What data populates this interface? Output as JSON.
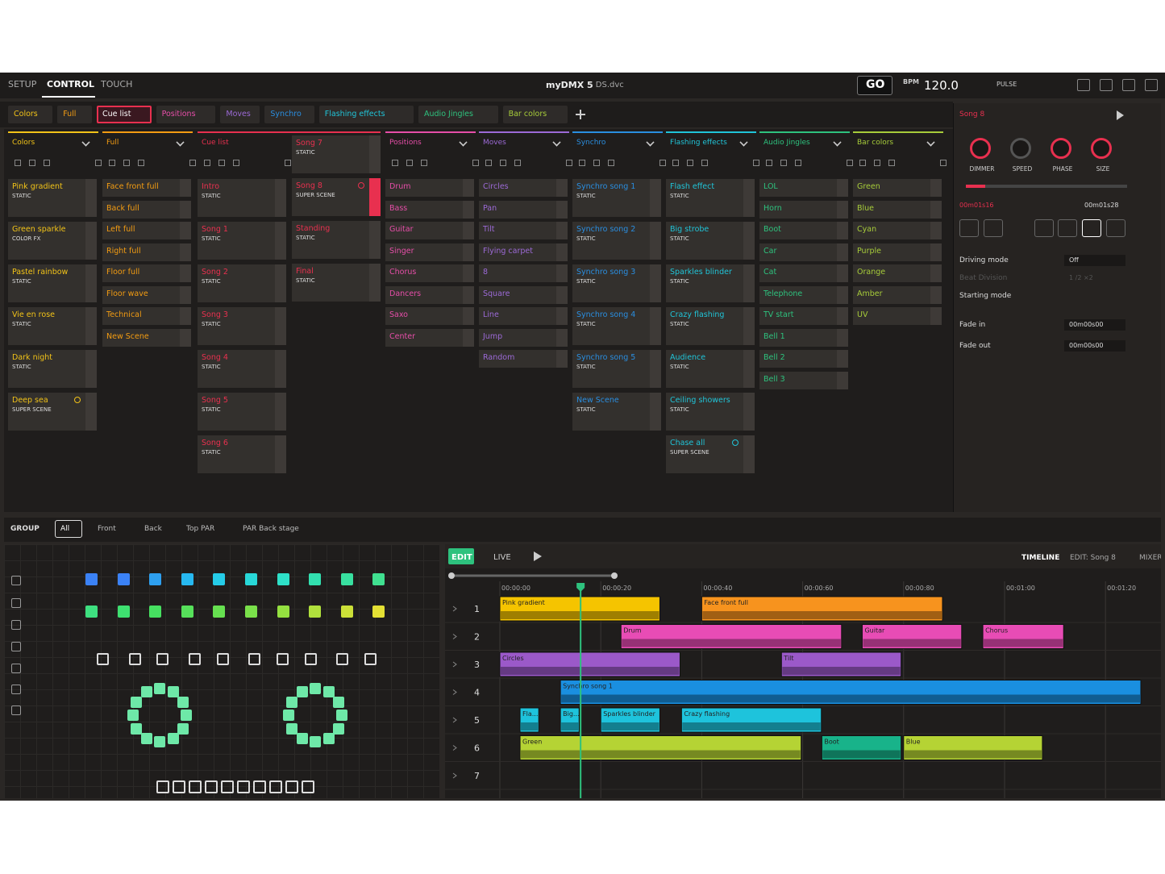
{
  "menu": [
    "SETUP",
    "CONTROL",
    "TOUCH"
  ],
  "app_title": "myDMX 5",
  "file_name": "- DS.dvc",
  "toolbar": {
    "go": "GO",
    "bpm_label": "BPM",
    "bpm": "120.0",
    "pulse": "PULSE"
  },
  "columns": [
    {
      "title": "Colors",
      "color": "#f2c318",
      "stacks": [
        [
          {
            "name": "Pink gradient",
            "sub": "STATIC"
          },
          {
            "name": "Green sparkle",
            "sub": "COLOR FX"
          },
          {
            "name": "Pastel rainbow",
            "sub": "STATIC"
          },
          {
            "name": "Vie en rose",
            "sub": "STATIC"
          },
          {
            "name": "Dark night",
            "sub": "STATIC"
          },
          {
            "name": "Deep sea",
            "sub": "SUPER SCENE"
          }
        ]
      ]
    },
    {
      "title": "Full",
      "color": "#f39c12",
      "stacks": [
        [
          {
            "name": "Face front full"
          },
          {
            "name": "Back full"
          },
          {
            "name": "Left full"
          },
          {
            "name": "Right full"
          },
          {
            "name": "Floor full"
          },
          {
            "name": "Floor wave"
          },
          {
            "name": "Technical"
          },
          {
            "name": "New Scene"
          }
        ]
      ]
    },
    {
      "title": "Cue list",
      "color": "#e8304f",
      "active": true,
      "stacks": [
        [
          {
            "name": "Intro",
            "sub": "STATIC"
          },
          {
            "name": "Song 1",
            "sub": "STATIC"
          },
          {
            "name": "Song 2",
            "sub": "STATIC"
          },
          {
            "name": "Song 3",
            "sub": "STATIC"
          },
          {
            "name": "Song 4",
            "sub": "STATIC"
          },
          {
            "name": "Song 5",
            "sub": "STATIC"
          },
          {
            "name": "Song 6",
            "sub": "STATIC"
          }
        ],
        [
          {
            "name": "Song 7",
            "sub": "STATIC"
          },
          {
            "name": "Song 8",
            "sub": "SUPER SCENE"
          },
          {
            "name": "Standing",
            "sub": "STATIC"
          },
          {
            "name": "Final",
            "sub": "STATIC"
          }
        ]
      ]
    },
    {
      "title": "Positions",
      "color": "#e64ea8",
      "stacks": [
        [
          {
            "name": "Drum"
          },
          {
            "name": "Bass"
          },
          {
            "name": "Guitar"
          },
          {
            "name": "Singer"
          },
          {
            "name": "Chorus"
          },
          {
            "name": "Dancers"
          },
          {
            "name": "Saxo"
          },
          {
            "name": "Center"
          }
        ]
      ]
    },
    {
      "title": "Moves",
      "color": "#9c6ad6",
      "stacks": [
        [
          {
            "name": "Circles"
          },
          {
            "name": "Pan"
          },
          {
            "name": "Tilt"
          },
          {
            "name": "Flying carpet"
          },
          {
            "name": "8"
          },
          {
            "name": "Square"
          },
          {
            "name": "Line"
          },
          {
            "name": "Jump"
          },
          {
            "name": "Random"
          }
        ]
      ]
    },
    {
      "title": "Synchro",
      "color": "#2a8ee0",
      "stacks": [
        [
          {
            "name": "Synchro song 1",
            "sub": "STATIC"
          },
          {
            "name": "Synchro song 2",
            "sub": "STATIC"
          },
          {
            "name": "Synchro song 3",
            "sub": "STATIC"
          },
          {
            "name": "Synchro song 4",
            "sub": "STATIC"
          },
          {
            "name": "Synchro song 5",
            "sub": "STATIC"
          },
          {
            "name": "New Scene",
            "sub": "STATIC"
          }
        ]
      ]
    },
    {
      "title": "Flashing effects",
      "color": "#20c4d8",
      "stacks": [
        [
          {
            "name": "Flash effect",
            "sub": "STATIC"
          },
          {
            "name": "Big strobe",
            "sub": "STATIC"
          },
          {
            "name": "Sparkles blinder",
            "sub": "STATIC"
          },
          {
            "name": "Crazy flashing",
            "sub": "STATIC"
          },
          {
            "name": "Audience",
            "sub": "STATIC"
          },
          {
            "name": "Ceiling showers",
            "sub": "STATIC"
          },
          {
            "name": "Chase all",
            "sub": "SUPER SCENE"
          }
        ]
      ]
    },
    {
      "title": "Audio Jingles",
      "color": "#2ec27e",
      "stacks": [
        [
          {
            "name": "LOL"
          },
          {
            "name": "Horn"
          },
          {
            "name": "Boot"
          },
          {
            "name": "Car"
          },
          {
            "name": "Cat"
          },
          {
            "name": "Telephone"
          },
          {
            "name": "TV start"
          },
          {
            "name": "Bell 1"
          },
          {
            "name": "Bell 2"
          },
          {
            "name": "Bell 3"
          }
        ]
      ]
    },
    {
      "title": "Bar colors",
      "color": "#a7cc3a",
      "stacks": [
        [
          {
            "name": "Green"
          },
          {
            "name": "Blue"
          },
          {
            "name": "Cyan"
          },
          {
            "name": "Purple"
          },
          {
            "name": "Orange"
          },
          {
            "name": "Amber"
          },
          {
            "name": "UV"
          }
        ]
      ]
    }
  ],
  "editor": {
    "title": "Song 8",
    "knobs": [
      "DIMMER",
      "SPEED",
      "PHASE",
      "SIZE"
    ],
    "time": "00m01s16",
    "duration": "00m01s28",
    "rows": [
      {
        "label": "Driving mode",
        "value": "Off"
      },
      {
        "label": "Beat Division",
        "value": "1 /2 ×2"
      },
      {
        "label": "Starting mode"
      },
      {
        "label": "Fade in",
        "value": "00m00s00"
      },
      {
        "label": "Fade out",
        "value": "00m00s00"
      }
    ]
  },
  "group": {
    "label": "GROUP",
    "items": [
      "All",
      "Front",
      "Back",
      "Top PAR",
      "PAR Back stage"
    ]
  },
  "timeline": {
    "modes": [
      "EDIT",
      "LIVE"
    ],
    "views": [
      "TIMELINE",
      "EDIT: Song 8",
      "MIXER"
    ],
    "xlim": [
      0,
      127
    ],
    "xticks": [
      {
        "value": 0,
        "label": "00:00:00"
      },
      {
        "value": 20,
        "label": "00:00:20"
      },
      {
        "value": 40,
        "label": "00:00:40"
      },
      {
        "value": 60,
        "label": "00:00:60"
      },
      {
        "value": 80,
        "label": "00:00:80"
      },
      {
        "value": 100,
        "label": "00:01:00"
      },
      {
        "value": 120,
        "label": "00:01:20"
      }
    ],
    "playhead": 16,
    "tracks": [
      {
        "label": "1",
        "clips": [
          {
            "name": "Pink gradient",
            "color": "#f5c400",
            "start": 0,
            "end": 31.7
          },
          {
            "name": "Face front full",
            "color": "#f7931e",
            "start": 40,
            "end": 87.7
          }
        ]
      },
      {
        "label": "2",
        "clips": [
          {
            "name": "Drum",
            "color": "#e84cb5",
            "start": 24,
            "end": 67.7
          },
          {
            "name": "Guitar",
            "color": "#e84cb5",
            "start": 71.8,
            "end": 91.5
          },
          {
            "name": "Chorus",
            "color": "#e84cb5",
            "start": 95.7,
            "end": 111.7
          }
        ]
      },
      {
        "label": "3",
        "clips": [
          {
            "name": "Circles",
            "color": "#9b59c9",
            "start": 0,
            "end": 35.7
          },
          {
            "name": "Tilt",
            "color": "#9b59c9",
            "start": 55.8,
            "end": 79.5
          }
        ]
      },
      {
        "label": "4",
        "clips": [
          {
            "name": "Synchro song 1",
            "color": "#1a8fe0",
            "start": 12,
            "end": 127
          }
        ]
      },
      {
        "label": "5",
        "clips": [
          {
            "name": "Fla...",
            "color": "#1ec3dc",
            "start": 4,
            "end": 7.7
          },
          {
            "name": "Big...",
            "color": "#1ec3dc",
            "start": 12,
            "end": 15.7
          },
          {
            "name": "Sparkles blinder",
            "color": "#1ec3dc",
            "start": 20,
            "end": 31.7
          },
          {
            "name": "Crazy flashing",
            "color": "#1ec3dc",
            "start": 36,
            "end": 63.7
          }
        ]
      },
      {
        "label": "6",
        "clips": [
          {
            "name": "Green",
            "color": "#b5d334",
            "start": 4,
            "end": 59.7
          },
          {
            "name": "Boot",
            "color": "#18b38a",
            "start": 63.8,
            "end": 79.5
          },
          {
            "name": "Blue",
            "color": "#b5d334",
            "start": 80,
            "end": 107.5
          }
        ]
      },
      {
        "label": "7",
        "clips": []
      }
    ]
  }
}
